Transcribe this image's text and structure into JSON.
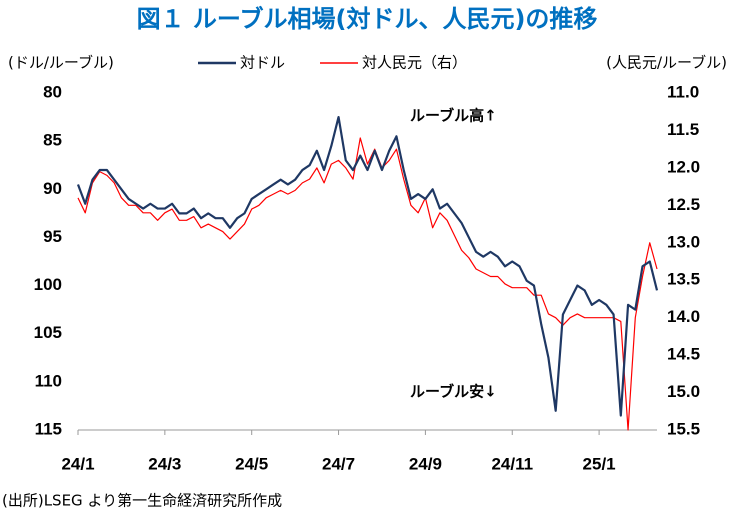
{
  "chart_data": {
    "type": "line",
    "title": "図１ ルーブル相場(対ドル、人民元)の推移",
    "y_label": "(ドル/ルーブル)",
    "y2_label": "(人民元/ルーブル)",
    "annotations": [
      "ルーブル高↑",
      "ルーブル安↓"
    ],
    "source": "(出所)LSEG より第一生命経済研究所作成",
    "categories": [
      "24/1",
      null,
      null,
      null,
      null,
      null,
      null,
      null,
      null,
      null,
      null,
      null,
      "24/3",
      null,
      null,
      null,
      null,
      null,
      null,
      null,
      null,
      null,
      null,
      null,
      "24/5",
      null,
      null,
      null,
      null,
      null,
      null,
      null,
      null,
      null,
      null,
      null,
      "24/7",
      null,
      null,
      null,
      null,
      null,
      null,
      null,
      null,
      null,
      null,
      null,
      "24/9",
      null,
      null,
      null,
      null,
      null,
      null,
      null,
      null,
      null,
      null,
      null,
      "24/11",
      null,
      null,
      null,
      null,
      null,
      null,
      null,
      null,
      null,
      null,
      null,
      "25/1",
      null,
      null,
      null,
      null,
      null,
      null,
      null,
      null
    ],
    "series": [
      {
        "name": "対ドル",
        "color": "#1f3864",
        "values": [
          89.5,
          91.5,
          89,
          88,
          88,
          89,
          90,
          91,
          91.5,
          92,
          91.5,
          92,
          92,
          91.5,
          92.5,
          92.5,
          92,
          93,
          92.5,
          93,
          93,
          94,
          93,
          92.5,
          91,
          90.5,
          90,
          89.5,
          89,
          89.5,
          89,
          88,
          87.5,
          86,
          88,
          85.5,
          82.5,
          87,
          88,
          86.5,
          88,
          86,
          88,
          86,
          84.5,
          88,
          91,
          90.5,
          91,
          90,
          92,
          91.5,
          92.5,
          93.5,
          95,
          96.5,
          97,
          96.5,
          97,
          98,
          97.5,
          98,
          99.5,
          100,
          104,
          107.5,
          113,
          103,
          101.5,
          100,
          100.5,
          102,
          101.5,
          102,
          103,
          113.5,
          102,
          102.5,
          98,
          97.5,
          100.5
        ]
      },
      {
        "name": "対人民元（右）",
        "color": "#ff0000",
        "axis": "y2",
        "values": [
          12.4,
          12.6,
          12.2,
          12.05,
          12.1,
          12.2,
          12.4,
          12.5,
          12.5,
          12.6,
          12.6,
          12.7,
          12.6,
          12.55,
          12.7,
          12.7,
          12.65,
          12.8,
          12.75,
          12.8,
          12.85,
          12.95,
          12.85,
          12.75,
          12.55,
          12.5,
          12.4,
          12.35,
          12.3,
          12.35,
          12.3,
          12.2,
          12.15,
          12.0,
          12.2,
          11.95,
          11.9,
          12.0,
          12.15,
          11.6,
          11.95,
          11.75,
          12.0,
          11.9,
          11.75,
          12.15,
          12.5,
          12.6,
          12.4,
          12.8,
          12.6,
          12.7,
          12.9,
          13.1,
          13.2,
          13.35,
          13.4,
          13.45,
          13.45,
          13.55,
          13.6,
          13.6,
          13.6,
          13.7,
          13.7,
          13.95,
          14.0,
          14.1,
          14.0,
          13.95,
          14.0,
          14.0,
          14.0,
          14.0,
          14.0,
          14.05,
          15.5,
          14.0,
          13.45,
          13.0,
          13.35
        ]
      }
    ],
    "ylim": [
      80,
      115
    ],
    "invert_y": true,
    "yticks": [
      80,
      85,
      90,
      95,
      100,
      105,
      110,
      115
    ],
    "y2lim": [
      11,
      15.5
    ],
    "invert_y2": true,
    "y2ticks": [
      {
        "value": 11,
        "label": "11.0"
      },
      11.5,
      {
        "value": 12,
        "label": "12.0"
      },
      12.5,
      {
        "value": 13,
        "label": "13.0"
      },
      13.5,
      {
        "value": 14,
        "label": "14.0"
      },
      14.5,
      {
        "value": 15,
        "label": "15.0"
      },
      15.5
    ],
    "grid": false
  }
}
